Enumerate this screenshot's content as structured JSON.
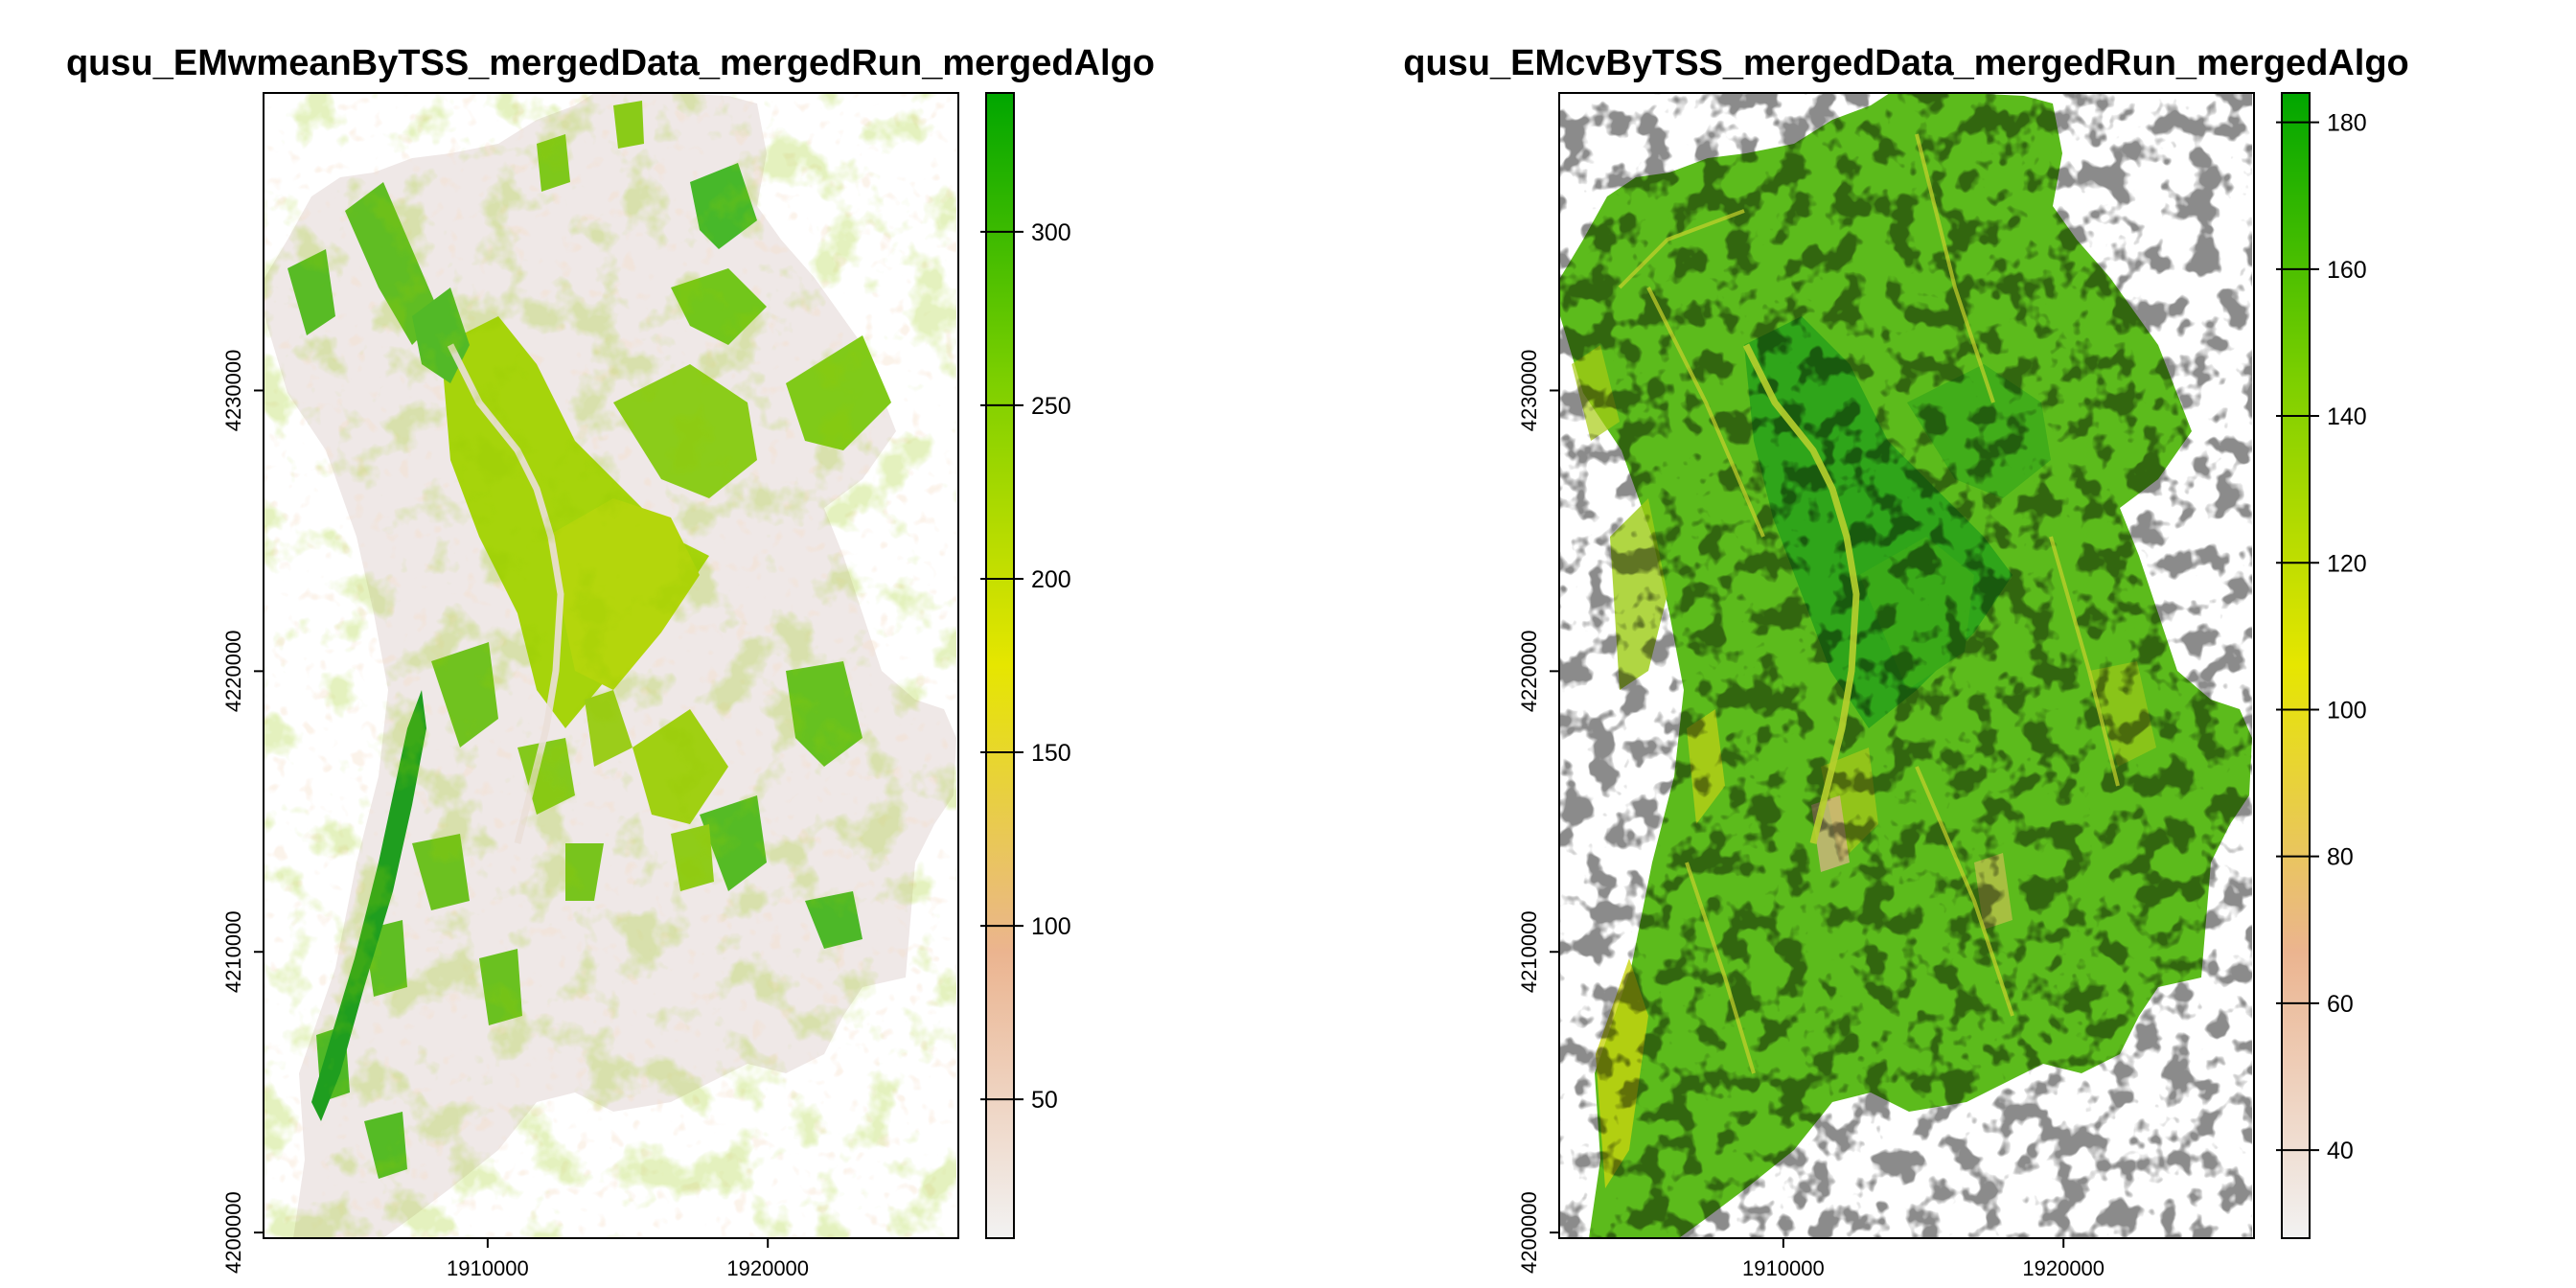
{
  "chart_data": [
    {
      "type": "heatmap",
      "title": "qusu_EMwmeanByTSS_mergedData_mergedRun_mergedAlgo",
      "x_ticks": [
        1910000,
        1920000
      ],
      "x_tick_labels": [
        "1910000",
        "1920000"
      ],
      "y_ticks": [
        4200000,
        4210000,
        4220000,
        4230000
      ],
      "y_tick_labels": [
        "4200000",
        "4210000",
        "4220000",
        "4230000"
      ],
      "xlim": [
        1902000,
        1926800
      ],
      "ylim": [
        4199800,
        4240600
      ],
      "legend": {
        "position": "right",
        "range": [
          10,
          340
        ],
        "ticks": [
          50,
          100,
          150,
          200,
          250,
          300
        ],
        "tick_labels": [
          "50",
          "100",
          "150",
          "200",
          "250",
          "300"
        ],
        "colors": [
          "#f2f2f2",
          "#ebb48f",
          "#e6e600",
          "#7ccf00",
          "#00a600"
        ]
      },
      "grid": false,
      "dominant_appearance": "mostly near-white background values with green patches along valleys"
    },
    {
      "type": "heatmap",
      "title": "qusu_EMcvByTSS_mergedData_mergedRun_mergedAlgo",
      "x_ticks": [
        1910000,
        1920000
      ],
      "x_tick_labels": [
        "1910000",
        "1920000"
      ],
      "y_ticks": [
        4200000,
        4210000,
        4220000,
        4230000
      ],
      "y_tick_labels": [
        "4200000",
        "4210000",
        "4220000",
        "4230000"
      ],
      "xlim": [
        1902000,
        1926800
      ],
      "ylim": [
        4199800,
        4240600
      ],
      "legend": {
        "position": "right",
        "range": [
          28,
          184
        ],
        "ticks": [
          40,
          60,
          80,
          100,
          120,
          140,
          160,
          180
        ],
        "tick_labels": [
          "40",
          "60",
          "80",
          "100",
          "120",
          "140",
          "160",
          "180"
        ],
        "colors": [
          "#f2f2f2",
          "#ebb48f",
          "#e6e600",
          "#7ccf00",
          "#00a600"
        ]
      },
      "grid": false,
      "dominant_appearance": "mostly green values with yellow streaks"
    }
  ],
  "colors": {
    "frame": "#000000",
    "outside": "#ffffff"
  }
}
